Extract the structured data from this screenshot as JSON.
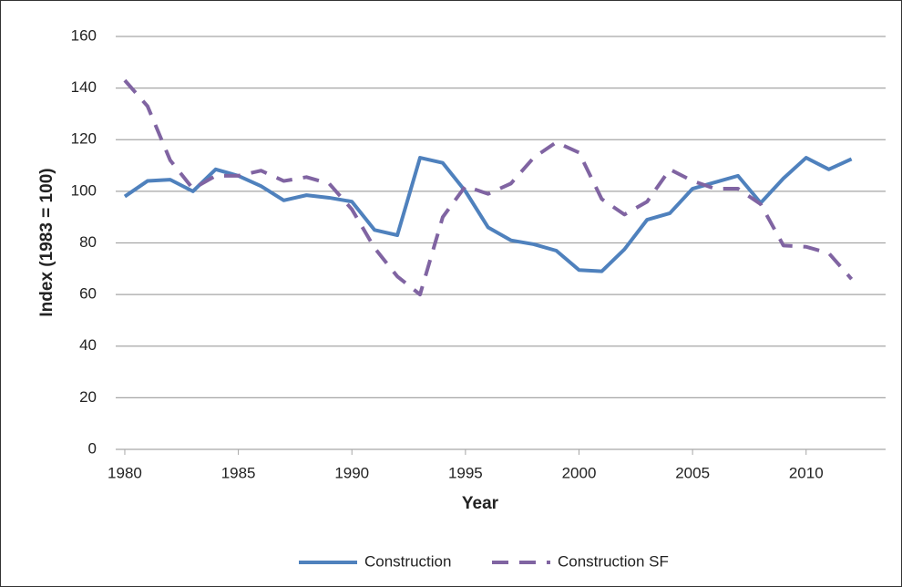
{
  "chart_data": {
    "type": "line",
    "x_label": "Year",
    "y_label": "Index (1983 = 100)",
    "x": [
      1980,
      1981,
      1982,
      1983,
      1984,
      1985,
      1986,
      1987,
      1988,
      1989,
      1990,
      1991,
      1992,
      1993,
      1994,
      1995,
      1996,
      1997,
      1998,
      1999,
      2000,
      2001,
      2002,
      2003,
      2004,
      2005,
      2006,
      2007,
      2008,
      2009,
      2010,
      2011,
      2012
    ],
    "series": [
      {
        "name": "Construction",
        "color": "#4f81bd",
        "dash": false,
        "values": [
          98,
          104,
          104.5,
          100,
          108.5,
          106,
          102,
          96.5,
          98.5,
          97.5,
          96,
          85,
          83,
          113,
          111,
          100,
          86,
          81,
          79.5,
          77,
          69.5,
          69,
          77.5,
          89,
          91.5,
          101,
          103.5,
          106,
          95.5,
          105,
          113,
          108.5,
          112.5
        ]
      },
      {
        "name": "Construction SF",
        "color": "#8064a2",
        "dash": true,
        "values": [
          143,
          133,
          112,
          101,
          106,
          106,
          108,
          104,
          105.5,
          103,
          93,
          78,
          67,
          60,
          90,
          102,
          99,
          103,
          113,
          119,
          115,
          97,
          91,
          96,
          108.5,
          104,
          101,
          101,
          95,
          79,
          78.5,
          76,
          66
        ]
      }
    ],
    "xlim": [
      1979.6,
      2013.5
    ],
    "xticks": [
      1980,
      1985,
      1990,
      1995,
      2000,
      2005,
      2010
    ],
    "ylim": [
      0,
      160
    ],
    "yticks": [
      0,
      20,
      40,
      60,
      80,
      100,
      120,
      140,
      160
    ],
    "grid": true,
    "legend": "bottom"
  }
}
